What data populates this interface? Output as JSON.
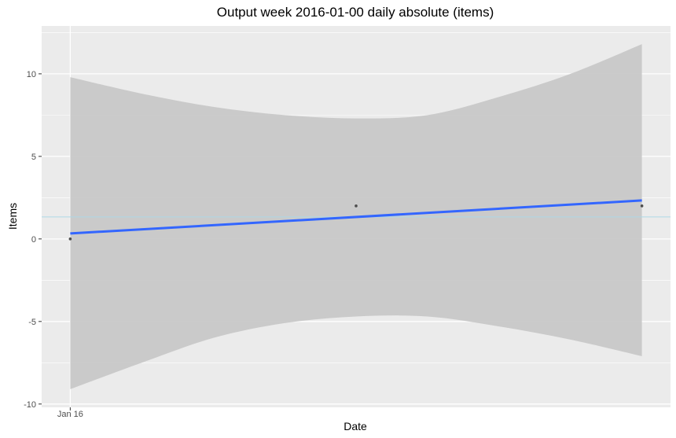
{
  "chart_data": {
    "type": "scatter",
    "title": "Output week 2016-01-00 daily absolute (items)",
    "xlabel": "Date",
    "ylabel": "Items",
    "x_ticks": [
      {
        "value": "2016-01-16",
        "label": "Jan 16"
      }
    ],
    "y_ticks": [
      {
        "value": -10,
        "label": "-10"
      },
      {
        "value": -5,
        "label": "-5"
      },
      {
        "value": 0,
        "label": "0"
      },
      {
        "value": 5,
        "label": "5"
      },
      {
        "value": 10,
        "label": "10"
      }
    ],
    "xlim": [
      "2016-01-15.9",
      "2016-01-18.1"
    ],
    "ylim": [
      -10.2,
      12.9
    ],
    "grid": true,
    "points": [
      {
        "x": "2016-01-16",
        "y": 0
      },
      {
        "x": "2016-01-17",
        "y": 2
      },
      {
        "x": "2016-01-18",
        "y": 2
      }
    ],
    "trend": {
      "x": [
        "2016-01-16",
        "2016-01-18"
      ],
      "y": [
        0.33,
        2.33
      ]
    },
    "ribbon": {
      "x": [
        "2016-01-16",
        "2016-01-16.25",
        "2016-01-16.5",
        "2016-01-16.75",
        "2016-01-17",
        "2016-01-17.25",
        "2016-01-17.5",
        "2016-01-17.75",
        "2016-01-18"
      ],
      "upper": [
        9.8,
        8.8,
        8.0,
        7.5,
        7.3,
        7.5,
        8.6,
        10.0,
        11.8
      ],
      "lower": [
        -9.1,
        -7.5,
        -6.0,
        -5.1,
        -4.7,
        -4.7,
        -5.3,
        -6.1,
        -7.1
      ]
    },
    "mean_line": {
      "y": 1.33
    },
    "colors": {
      "panel": "#ebebeb",
      "grid_major": "#ffffff",
      "ribbon": "#c8c8c8",
      "trend": "#3366ff",
      "mean_line": "#add8e6",
      "point": "#4d4d4d"
    }
  }
}
